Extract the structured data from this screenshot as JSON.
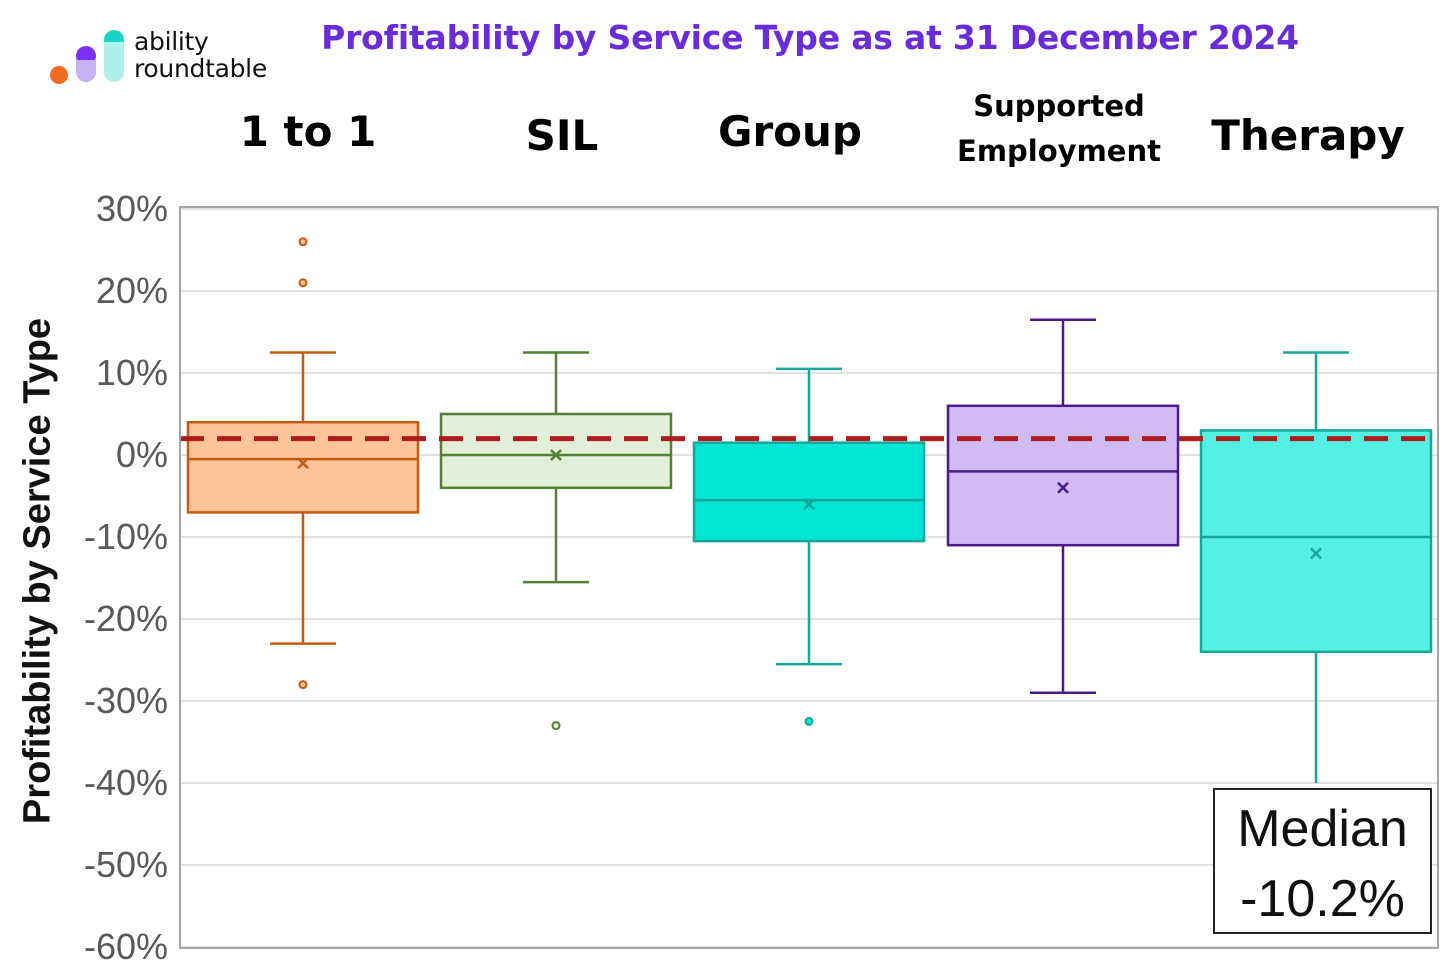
{
  "logo": {
    "line1": "ability",
    "line2": "roundtable",
    "colors": [
      "#f26b21",
      "#7b2ff7",
      "#c4b2f5",
      "#17d4c8",
      "#aef0ea"
    ]
  },
  "chart_data": {
    "type": "box",
    "title": "Profitability by Service Type as at 31 December 2024",
    "ylabel": "Profitability by Service Type",
    "ylim": [
      -60,
      30
    ],
    "yticks": [
      30,
      20,
      10,
      0,
      -10,
      -20,
      -30,
      -40,
      -50,
      -60
    ],
    "ytick_labels": [
      "30%",
      "20%",
      "10%",
      "0%",
      "-10%",
      "-20%",
      "-30%",
      "-40%",
      "-50%",
      "-60%"
    ],
    "grid": true,
    "reference_line": {
      "value": 2,
      "style": "dashed",
      "color": "#b01c1c"
    },
    "categories": [
      "1 to 1",
      "SIL",
      "Group",
      "Supported Employment",
      "Therapy"
    ],
    "series": [
      {
        "category": "1 to 1",
        "whisker_low": -23,
        "q1": -7,
        "median": -0.5,
        "q3": 4,
        "whisker_high": 12.5,
        "mean": -1,
        "outliers": [
          26,
          21,
          -28
        ],
        "fill": "#fdc49a",
        "stroke": "#c55a11"
      },
      {
        "category": "SIL",
        "whisker_low": -15.5,
        "q1": -4,
        "median": 0,
        "q3": 5,
        "whisker_high": 12.5,
        "mean": 0,
        "outliers": [
          -33
        ],
        "fill": "#e2efd9",
        "stroke": "#538135"
      },
      {
        "category": "Group",
        "whisker_low": -25.5,
        "q1": -10.5,
        "median": -5.5,
        "q3": 1.5,
        "whisker_high": 10.5,
        "mean": -6,
        "outliers": [
          -32.5
        ],
        "fill": "#00e5d4",
        "stroke": "#17a69a"
      },
      {
        "category": "Supported Employment",
        "whisker_low": -29,
        "q1": -11,
        "median": -2,
        "q3": 6,
        "whisker_high": 16.5,
        "mean": -4,
        "outliers": [],
        "fill": "#d0bbf4",
        "stroke": "#4b1a8c"
      },
      {
        "category": "Therapy",
        "whisker_low": -40,
        "q1": -24,
        "median": -10,
        "q3": 3,
        "whisker_high": 12.5,
        "mean": -12,
        "outliers": [],
        "fill": "#55f0e4",
        "stroke": "#17a69a"
      }
    ],
    "annotation": {
      "line1": "Median",
      "line2": "-10.2%"
    }
  }
}
